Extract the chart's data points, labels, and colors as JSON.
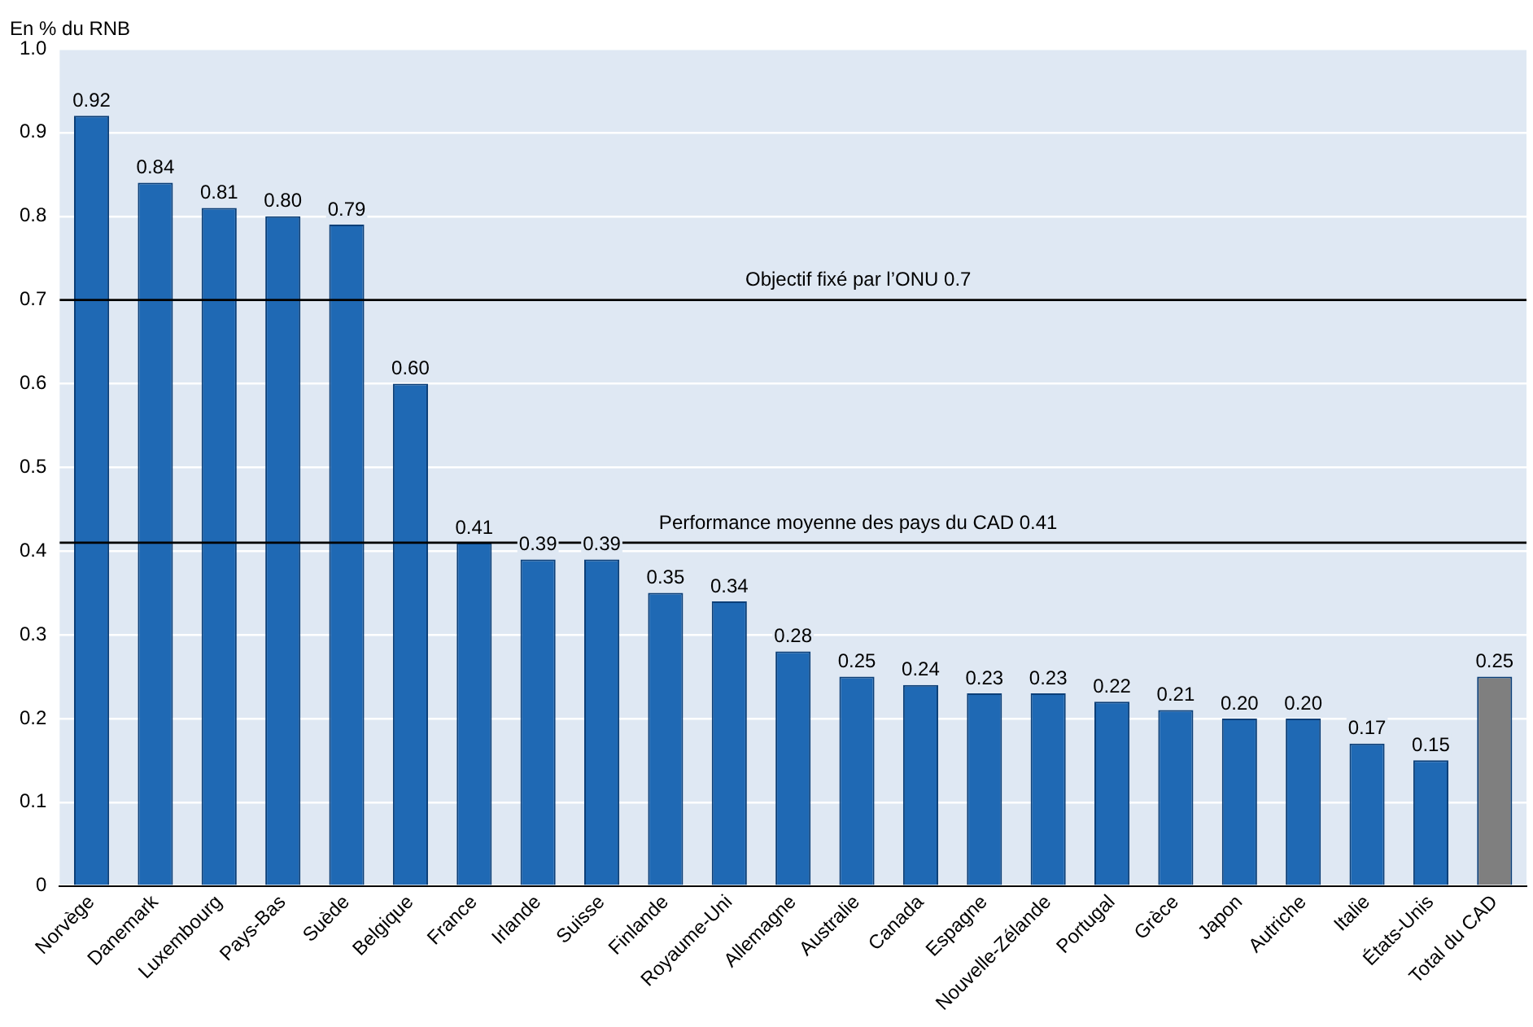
{
  "chart_data": {
    "type": "bar",
    "ylabel": "En % du RNB",
    "categories": [
      "Norvège",
      "Danemark",
      "Luxembourg",
      "Pays-Bas",
      "Suède",
      "Belgique",
      "France",
      "Irlande",
      "Suisse",
      "Finlande",
      "Royaume-Uni",
      "Allemagne",
      "Australie",
      "Canada",
      "Espagne",
      "Nouvelle-Zélande",
      "Portugal",
      "Grèce",
      "Japon",
      "Autriche",
      "Italie",
      "États-Unis",
      "Total du CAD"
    ],
    "values": [
      0.92,
      0.84,
      0.81,
      0.8,
      0.79,
      0.6,
      0.41,
      0.39,
      0.39,
      0.35,
      0.34,
      0.28,
      0.25,
      0.24,
      0.23,
      0.23,
      0.22,
      0.21,
      0.2,
      0.2,
      0.17,
      0.15,
      0.25
    ],
    "value_labels": [
      "0.92",
      "0.84",
      "0.81",
      "0.80",
      "0.79",
      "0.60",
      "0.41",
      "0.39",
      "0.39",
      "0.35",
      "0.34",
      "0.28",
      "0.25",
      "0.24",
      "0.23",
      "0.23",
      "0.22",
      "0.21",
      "0.20",
      "0.20",
      "0.17",
      "0.15",
      "0.25"
    ],
    "colors": [
      "#1f69b4",
      "#1f69b4",
      "#1f69b4",
      "#1f69b4",
      "#1f69b4",
      "#1f69b4",
      "#1f69b4",
      "#1f69b4",
      "#1f69b4",
      "#1f69b4",
      "#1f69b4",
      "#1f69b4",
      "#1f69b4",
      "#1f69b4",
      "#1f69b4",
      "#1f69b4",
      "#1f69b4",
      "#1f69b4",
      "#1f69b4",
      "#1f69b4",
      "#1f69b4",
      "#1f69b4",
      "#7f7f7f"
    ],
    "ylim": [
      0,
      1
    ],
    "yticks": [
      0,
      0.1,
      0.2,
      0.3,
      0.4,
      0.5,
      0.6,
      0.7,
      0.8,
      0.9,
      {
        "value": 1,
        "label": "1.0"
      }
    ],
    "grid": "y",
    "legend": false,
    "ref_lines": [
      {
        "axis": "y",
        "value": 0.7,
        "label": "Objectif fixé par l’ONU 0.7",
        "color": "#000000"
      },
      {
        "axis": "y",
        "value": 0.41,
        "label": "Performance moyenne des pays du CAD 0.41",
        "color": "#000000"
      }
    ]
  }
}
